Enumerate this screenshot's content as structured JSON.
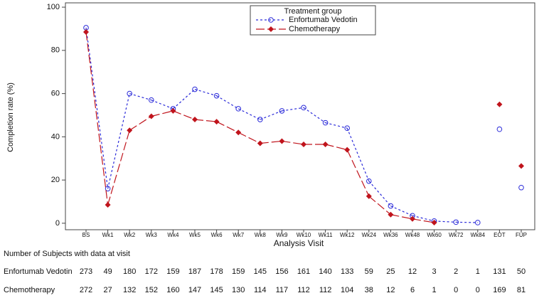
{
  "chart_data": {
    "type": "line",
    "y_label": "Completion rate (%)",
    "x_label": "Analysis Visit",
    "categories": [
      "BS",
      "Wk1",
      "Wk2",
      "Wk3",
      "Wk4",
      "Wk5",
      "Wk6",
      "Wk7",
      "Wk8",
      "Wk9",
      "Wk10",
      "Wk11",
      "Wk12",
      "Wk24",
      "Wk36",
      "Wk48",
      "Wk60",
      "Wk72",
      "Wk84",
      "EOT",
      "FUP"
    ],
    "joined_count": 19,
    "ylim": [
      -3,
      102
    ],
    "yticks": [
      0,
      20,
      40,
      60,
      80,
      100
    ],
    "legend": {
      "title": "Treatment group",
      "position": "top"
    },
    "series": [
      {
        "name": "Enfortumab Vedotin",
        "color": "#2b2bd9",
        "marker": "circle",
        "dash": "3,3",
        "values": [
          90.5,
          16,
          60,
          57,
          53,
          62,
          59,
          53,
          48,
          52,
          53.5,
          46.5,
          44,
          19.5,
          8,
          3.5,
          1,
          0.5,
          0.3,
          43.5,
          16.5
        ]
      },
      {
        "name": "Chemotherapy",
        "color": "#c0141c",
        "marker": "diamond",
        "dash": "12,4",
        "values": [
          88.5,
          8.5,
          43,
          49.5,
          52,
          48,
          47,
          42,
          37,
          38,
          36.5,
          36.5,
          34,
          12.5,
          4,
          2,
          0.3,
          null,
          null,
          55,
          26.5
        ]
      }
    ],
    "table": {
      "title": "Number of Subjects with data at visit",
      "rows": [
        {
          "name": "Enfortumab Vedotin",
          "counts": [
            273,
            49,
            180,
            172,
            159,
            187,
            178,
            159,
            145,
            156,
            161,
            140,
            133,
            59,
            25,
            12,
            3,
            2,
            1,
            131,
            50
          ]
        },
        {
          "name": "Chemotherapy",
          "counts": [
            272,
            27,
            132,
            152,
            160,
            147,
            145,
            130,
            114,
            117,
            112,
            112,
            104,
            38,
            12,
            6,
            1,
            0,
            0,
            169,
            81
          ]
        }
      ]
    }
  }
}
